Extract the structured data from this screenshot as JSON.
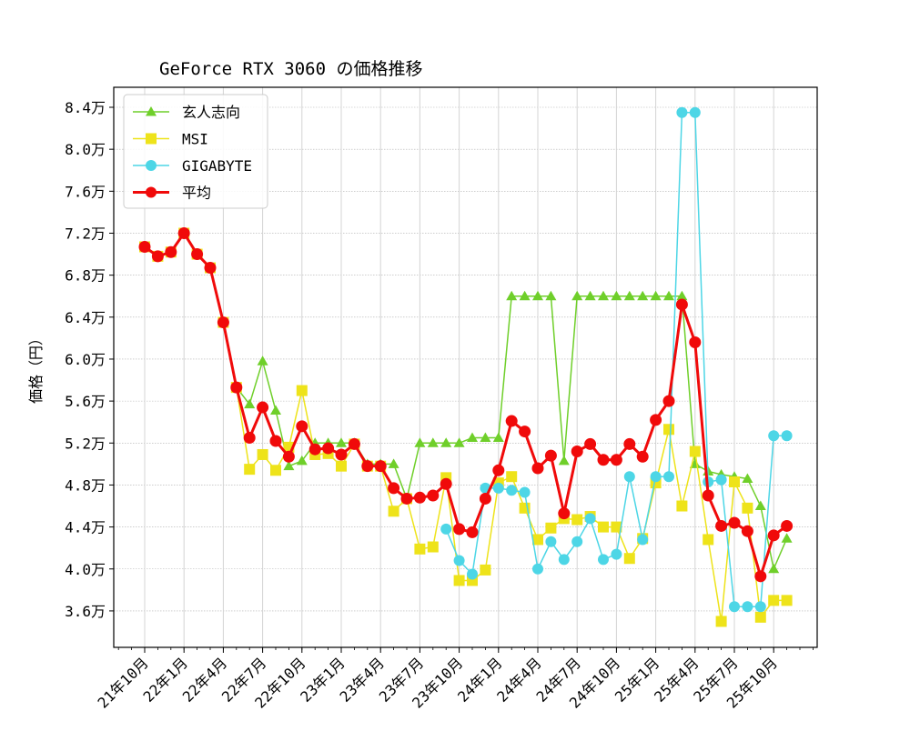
{
  "chart_data": {
    "type": "line",
    "title": "GeForce RTX 3060 の価格推移",
    "xlabel": "",
    "ylabel": "価格（円）",
    "ylim": [
      3.3,
      8.55
    ],
    "yticks": [
      3.6,
      4.0,
      4.4,
      4.8,
      5.2,
      5.6,
      6.0,
      6.4,
      6.8,
      7.2,
      7.6,
      8.0,
      8.4
    ],
    "ytick_labels": [
      "3.6万",
      "4.0万",
      "4.4万",
      "4.8万",
      "5.2万",
      "5.6万",
      "6.0万",
      "6.4万",
      "6.8万",
      "7.2万",
      "7.6万",
      "8.0万",
      "8.4万"
    ],
    "xtick_labels": [
      "21年10月",
      "22年1月",
      "22年4月",
      "22年7月",
      "22年10月",
      "23年1月",
      "23年4月",
      "23年7月",
      "23年10月",
      "24年1月",
      "24年4月",
      "24年7月",
      "24年10月",
      "25年1月",
      "25年4月",
      "25年7月",
      "25年10月"
    ],
    "x": [
      "21年10月",
      "21年11月",
      "21年12月",
      "22年1月",
      "22年2月",
      "22年3月",
      "22年4月",
      "22年5月",
      "22年6月",
      "22年7月",
      "22年8月",
      "22年9月",
      "22年10月",
      "22年11月",
      "22年12月",
      "23年1月",
      "23年2月",
      "23年3月",
      "23年4月",
      "23年5月",
      "23年6月",
      "23年7月",
      "23年8月",
      "23年9月",
      "23年10月",
      "23年11月",
      "23年12月",
      "24年1月",
      "24年2月",
      "24年3月",
      "24年4月",
      "24年5月",
      "24年6月",
      "24年7月",
      "24年8月",
      "24年9月",
      "24年10月",
      "24年11月",
      "24年12月",
      "25年1月",
      "25年2月",
      "25年3月",
      "25年4月",
      "25年5月",
      "25年6月",
      "25年7月",
      "25年8月",
      "25年9月",
      "25年10月",
      "25年11月"
    ],
    "grid": true,
    "legend_position": "top-left",
    "series": [
      {
        "name": "玄人志向",
        "color": "#6fcf2a",
        "marker": "triangle",
        "values": [
          7.07,
          6.98,
          7.02,
          7.2,
          7.0,
          6.87,
          6.35,
          5.73,
          5.57,
          5.98,
          5.51,
          4.98,
          5.03,
          5.2,
          5.2,
          5.2,
          5.2,
          5.0,
          5.0,
          5.0,
          4.67,
          5.2,
          5.2,
          5.2,
          5.2,
          5.25,
          5.25,
          5.25,
          6.6,
          6.6,
          6.6,
          6.6,
          5.03,
          6.6,
          6.6,
          6.6,
          6.6,
          6.6,
          6.6,
          6.6,
          6.6,
          6.6,
          5.0,
          4.93,
          4.9,
          4.88,
          4.86,
          4.6,
          4.0,
          4.29
        ]
      },
      {
        "name": "MSI",
        "color": "#eee31a",
        "marker": "square",
        "values": [
          7.07,
          6.98,
          7.02,
          7.2,
          7.0,
          6.87,
          6.35,
          5.73,
          4.95,
          5.09,
          4.94,
          5.16,
          5.7,
          5.09,
          5.1,
          4.98,
          5.19,
          4.98,
          4.98,
          4.55,
          4.67,
          4.19,
          4.21,
          4.87,
          3.89,
          3.89,
          3.99,
          4.82,
          4.88,
          4.58,
          4.28,
          4.39,
          4.48,
          4.47,
          4.5,
          4.4,
          4.4,
          4.1,
          4.29,
          4.82,
          5.33,
          4.6,
          5.12,
          4.28,
          3.5,
          4.83,
          4.58,
          3.54,
          3.7,
          3.7
        ]
      },
      {
        "name": "GIGABYTE",
        "color": "#4dd6e6",
        "marker": "circle",
        "values": [
          null,
          null,
          null,
          null,
          null,
          null,
          null,
          null,
          null,
          null,
          null,
          null,
          null,
          null,
          null,
          null,
          null,
          null,
          null,
          null,
          null,
          null,
          null,
          4.38,
          4.08,
          3.95,
          4.77,
          4.77,
          4.75,
          4.73,
          4.0,
          4.26,
          4.09,
          4.26,
          4.48,
          4.09,
          4.14,
          4.88,
          4.28,
          4.88,
          4.88,
          8.35,
          8.35,
          4.83,
          4.85,
          3.64,
          3.64,
          3.64,
          5.27,
          5.27
        ]
      },
      {
        "name": "平均",
        "color": "#f00a0a",
        "marker": "circle",
        "values": [
          7.07,
          6.98,
          7.02,
          7.2,
          7.0,
          6.87,
          6.35,
          5.73,
          5.25,
          5.54,
          5.22,
          5.07,
          5.36,
          5.14,
          5.15,
          5.09,
          5.19,
          4.98,
          4.98,
          4.77,
          4.67,
          4.68,
          4.7,
          4.81,
          4.38,
          4.35,
          4.67,
          4.94,
          5.41,
          5.31,
          4.96,
          5.08,
          4.53,
          5.12,
          5.19,
          5.04,
          5.04,
          5.19,
          5.07,
          5.42,
          5.6,
          6.52,
          6.16,
          4.7,
          4.41,
          4.44,
          4.36,
          3.93,
          4.32,
          4.41
        ]
      }
    ]
  }
}
